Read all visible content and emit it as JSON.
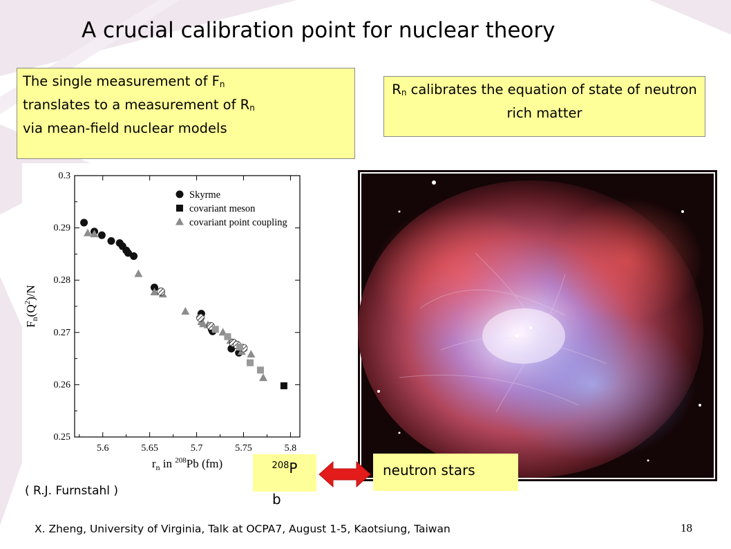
{
  "slide": {
    "title": "A crucial calibration point for nuclear theory",
    "box_left": {
      "line1_pre": "The single measurement of F",
      "line1_sub": "n",
      "line2_pre": "translates to a measurement of R",
      "line2_sub": "n",
      "line3": "via mean-field nuclear models"
    },
    "box_right": {
      "pre": "R",
      "sub": "n",
      "post": " calibrates the equation of state of neutron rich matter"
    },
    "pb_label": {
      "sup": "208",
      "main": "P",
      "wrap": "b"
    },
    "ns_label": "neutron stars",
    "credit": "( R.J.  Furnstahl )",
    "footer": "X. Zheng, University of Virginia,  Talk at OCPA7, August 1-5, Kaotsiung, Taiwan",
    "page_number": "18",
    "colors": {
      "box_fill": "#ffff99",
      "arrow": "#e31b1b",
      "deco": "#efe6ee"
    }
  },
  "chart_data": {
    "type": "scatter",
    "xlabel": "r_n in 208Pb (fm)",
    "ylabel": "F_n(Q^2)/N",
    "xlim": [
      5.57,
      5.81
    ],
    "ylim": [
      0.25,
      0.3
    ],
    "x_ticks": [
      5.6,
      5.65,
      5.7,
      5.75,
      5.8
    ],
    "x_tick_labels": [
      "5.6",
      "5.65",
      "5.7",
      "5.75",
      "5.8"
    ],
    "y_ticks": [
      0.25,
      0.26,
      0.27,
      0.28,
      0.29,
      0.3
    ],
    "y_tick_labels": [
      "0.25",
      "0.26",
      "0.27",
      "0.28",
      "0.29",
      "0.3"
    ],
    "legend_position": "top-right",
    "series": [
      {
        "name": "Skyrme",
        "marker": "circle",
        "color": "#111111",
        "points": [
          [
            5.58,
            0.291
          ],
          [
            5.591,
            0.2893
          ],
          [
            5.599,
            0.2886
          ],
          [
            5.609,
            0.2875
          ],
          [
            5.618,
            0.2871
          ],
          [
            5.621,
            0.2865
          ],
          [
            5.625,
            0.2857
          ],
          [
            5.627,
            0.2852
          ],
          [
            5.633,
            0.2846
          ],
          [
            5.655,
            0.2786
          ],
          [
            5.705,
            0.2736
          ],
          [
            5.716,
            0.2706
          ],
          [
            5.717,
            0.2702
          ],
          [
            5.737,
            0.2669
          ],
          [
            5.745,
            0.2661
          ]
        ]
      },
      {
        "name": "covariant meson",
        "marker": "square",
        "color": "#111111",
        "points": [
          [
            5.793,
            0.2598
          ]
        ]
      },
      {
        "name": "covariant point coupling",
        "marker": "triangle",
        "color": "#8c8c8c",
        "points": [
          [
            5.584,
            0.289
          ],
          [
            5.591,
            0.2888
          ],
          [
            5.638,
            0.2812
          ],
          [
            5.655,
            0.2777
          ],
          [
            5.664,
            0.2773
          ],
          [
            5.688,
            0.274
          ],
          [
            5.705,
            0.272
          ],
          [
            5.707,
            0.2716
          ],
          [
            5.712,
            0.2714
          ],
          [
            5.728,
            0.27
          ],
          [
            5.736,
            0.2684
          ],
          [
            5.748,
            0.2663
          ],
          [
            5.758,
            0.2658
          ],
          [
            5.771,
            0.2613
          ]
        ]
      },
      {
        "name": "",
        "marker": "hatched-circle",
        "color": "#555555",
        "points": [
          [
            5.662,
            0.2778
          ],
          [
            5.704,
            0.2728
          ],
          [
            5.715,
            0.2712
          ],
          [
            5.739,
            0.268
          ],
          [
            5.743,
            0.2676
          ],
          [
            5.75,
            0.267
          ]
        ]
      },
      {
        "name": "",
        "marker": "gray-square",
        "color": "#999999",
        "points": [
          [
            5.72,
            0.2706
          ],
          [
            5.733,
            0.2692
          ],
          [
            5.746,
            0.2672
          ],
          [
            5.757,
            0.2642
          ],
          [
            5.768,
            0.2628
          ]
        ]
      }
    ]
  },
  "image": {
    "name": "crab-nebula-photo"
  }
}
